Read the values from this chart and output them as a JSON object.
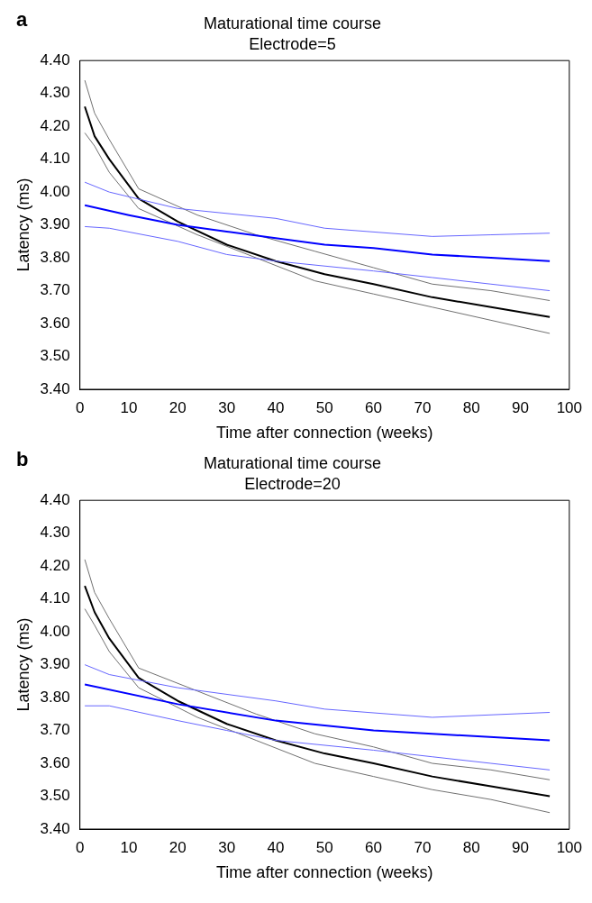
{
  "chart_data": [
    {
      "type": "line",
      "title": "Maturational time course",
      "subtitle": "Electrode=5",
      "xlabel": "Time after connection (weeks)",
      "ylabel": "Latency (ms)",
      "annotations": [
        "a"
      ],
      "xlim": [
        0,
        100
      ],
      "xticks": [
        0,
        10,
        20,
        30,
        40,
        50,
        60,
        70,
        80,
        90,
        100
      ],
      "ylim": [
        3.4,
        4.4
      ],
      "yticks": [
        {
          "value": 3.4,
          "label": "3.40"
        },
        {
          "value": 3.5,
          "label": "3.50"
        },
        {
          "value": 3.6,
          "label": "3.60"
        },
        {
          "value": 3.7,
          "label": "3.70"
        },
        {
          "value": 3.8,
          "label": "3.80"
        },
        {
          "value": 3.9,
          "label": "3.90"
        },
        {
          "value": 4.0,
          "label": "4.00"
        },
        {
          "value": 4.1,
          "label": "4.10"
        },
        {
          "value": 4.2,
          "label": "4.20"
        },
        {
          "value": 4.3,
          "label": "4.30"
        },
        {
          "value": 4.4,
          "label": "4.40"
        }
      ],
      "grid": false,
      "legend": false,
      "marker": "none",
      "line_style": "solid",
      "series": [
        {
          "color": "#6666ff",
          "x": [
            1,
            6,
            20,
            40,
            50,
            72,
            84,
            96
          ],
          "values": [
            4.03,
            4.0,
            3.95,
            3.92,
            3.89,
            3.865,
            3.87,
            3.875
          ]
        },
        {
          "color": "#0000ff",
          "x": [
            1,
            10,
            20,
            30,
            40,
            50,
            60,
            72,
            84,
            96
          ],
          "values": [
            3.96,
            3.93,
            3.9,
            3.88,
            3.86,
            3.84,
            3.83,
            3.81,
            3.8,
            3.79
          ]
        },
        {
          "color": "#6666ff",
          "x": [
            1,
            6,
            20,
            30,
            40,
            60,
            72,
            84,
            96
          ],
          "values": [
            3.895,
            3.89,
            3.85,
            3.81,
            3.79,
            3.76,
            3.74,
            3.72,
            3.7
          ]
        },
        {
          "color": "#707070",
          "x": [
            1,
            3,
            6,
            12,
            24,
            36,
            48,
            60,
            72,
            84,
            96
          ],
          "values": [
            4.34,
            4.24,
            4.16,
            4.01,
            3.93,
            3.87,
            3.82,
            3.77,
            3.72,
            3.7,
            3.67
          ]
        },
        {
          "color": "#000000",
          "x": [
            1,
            3,
            6,
            12,
            20,
            30,
            40,
            50,
            60,
            72,
            84,
            96
          ],
          "values": [
            4.26,
            4.17,
            4.1,
            3.98,
            3.91,
            3.84,
            3.79,
            3.75,
            3.72,
            3.68,
            3.65,
            3.62
          ]
        },
        {
          "color": "#707070",
          "x": [
            1,
            3,
            6,
            12,
            24,
            36,
            48,
            60,
            72,
            84,
            96
          ],
          "values": [
            4.18,
            4.14,
            4.06,
            3.95,
            3.87,
            3.8,
            3.73,
            3.69,
            3.65,
            3.61,
            3.57
          ]
        }
      ]
    },
    {
      "type": "line",
      "title": "Maturational time course",
      "subtitle": "Electrode=20",
      "xlabel": "Time after connection (weeks)",
      "ylabel": "Latency (ms)",
      "annotations": [
        "b"
      ],
      "xlim": [
        0,
        100
      ],
      "xticks": [
        0,
        10,
        20,
        30,
        40,
        50,
        60,
        70,
        80,
        90,
        100
      ],
      "ylim": [
        3.4,
        4.4
      ],
      "yticks": [
        {
          "value": 3.4,
          "label": "3.40"
        },
        {
          "value": 3.5,
          "label": "3.50"
        },
        {
          "value": 3.6,
          "label": "3.60"
        },
        {
          "value": 3.7,
          "label": "3.70"
        },
        {
          "value": 3.8,
          "label": "3.80"
        },
        {
          "value": 3.9,
          "label": "3.90"
        },
        {
          "value": 4.0,
          "label": "4.00"
        },
        {
          "value": 4.1,
          "label": "4.10"
        },
        {
          "value": 4.2,
          "label": "4.20"
        },
        {
          "value": 4.3,
          "label": "4.30"
        },
        {
          "value": 4.4,
          "label": "4.40"
        }
      ],
      "grid": false,
      "legend": false,
      "marker": "none",
      "line_style": "solid",
      "series": [
        {
          "color": "#6666ff",
          "x": [
            1,
            6,
            20,
            40,
            50,
            72,
            96
          ],
          "values": [
            3.9,
            3.87,
            3.83,
            3.79,
            3.765,
            3.74,
            3.755
          ]
        },
        {
          "color": "#0000ff",
          "x": [
            1,
            20,
            40,
            60,
            72,
            96
          ],
          "values": [
            3.84,
            3.78,
            3.73,
            3.7,
            3.69,
            3.67
          ]
        },
        {
          "color": "#6666ff",
          "x": [
            1,
            6,
            20,
            30,
            40,
            60,
            72,
            84,
            96
          ],
          "values": [
            3.775,
            3.775,
            3.73,
            3.7,
            3.67,
            3.64,
            3.62,
            3.6,
            3.58
          ]
        },
        {
          "color": "#707070",
          "x": [
            1,
            3,
            6,
            12,
            24,
            36,
            48,
            60,
            72,
            84,
            96
          ],
          "values": [
            4.22,
            4.12,
            4.04,
            3.89,
            3.82,
            3.75,
            3.69,
            3.65,
            3.6,
            3.58,
            3.55
          ]
        },
        {
          "color": "#000000",
          "x": [
            1,
            3,
            6,
            12,
            20,
            30,
            40,
            50,
            60,
            72,
            84,
            96
          ],
          "values": [
            4.14,
            4.06,
            3.98,
            3.86,
            3.79,
            3.72,
            3.67,
            3.63,
            3.6,
            3.56,
            3.53,
            3.5
          ]
        },
        {
          "color": "#707070",
          "x": [
            1,
            3,
            6,
            12,
            24,
            36,
            48,
            60,
            72,
            84,
            96
          ],
          "values": [
            4.07,
            4.02,
            3.94,
            3.83,
            3.74,
            3.67,
            3.6,
            3.56,
            3.52,
            3.49,
            3.45
          ]
        }
      ]
    }
  ]
}
